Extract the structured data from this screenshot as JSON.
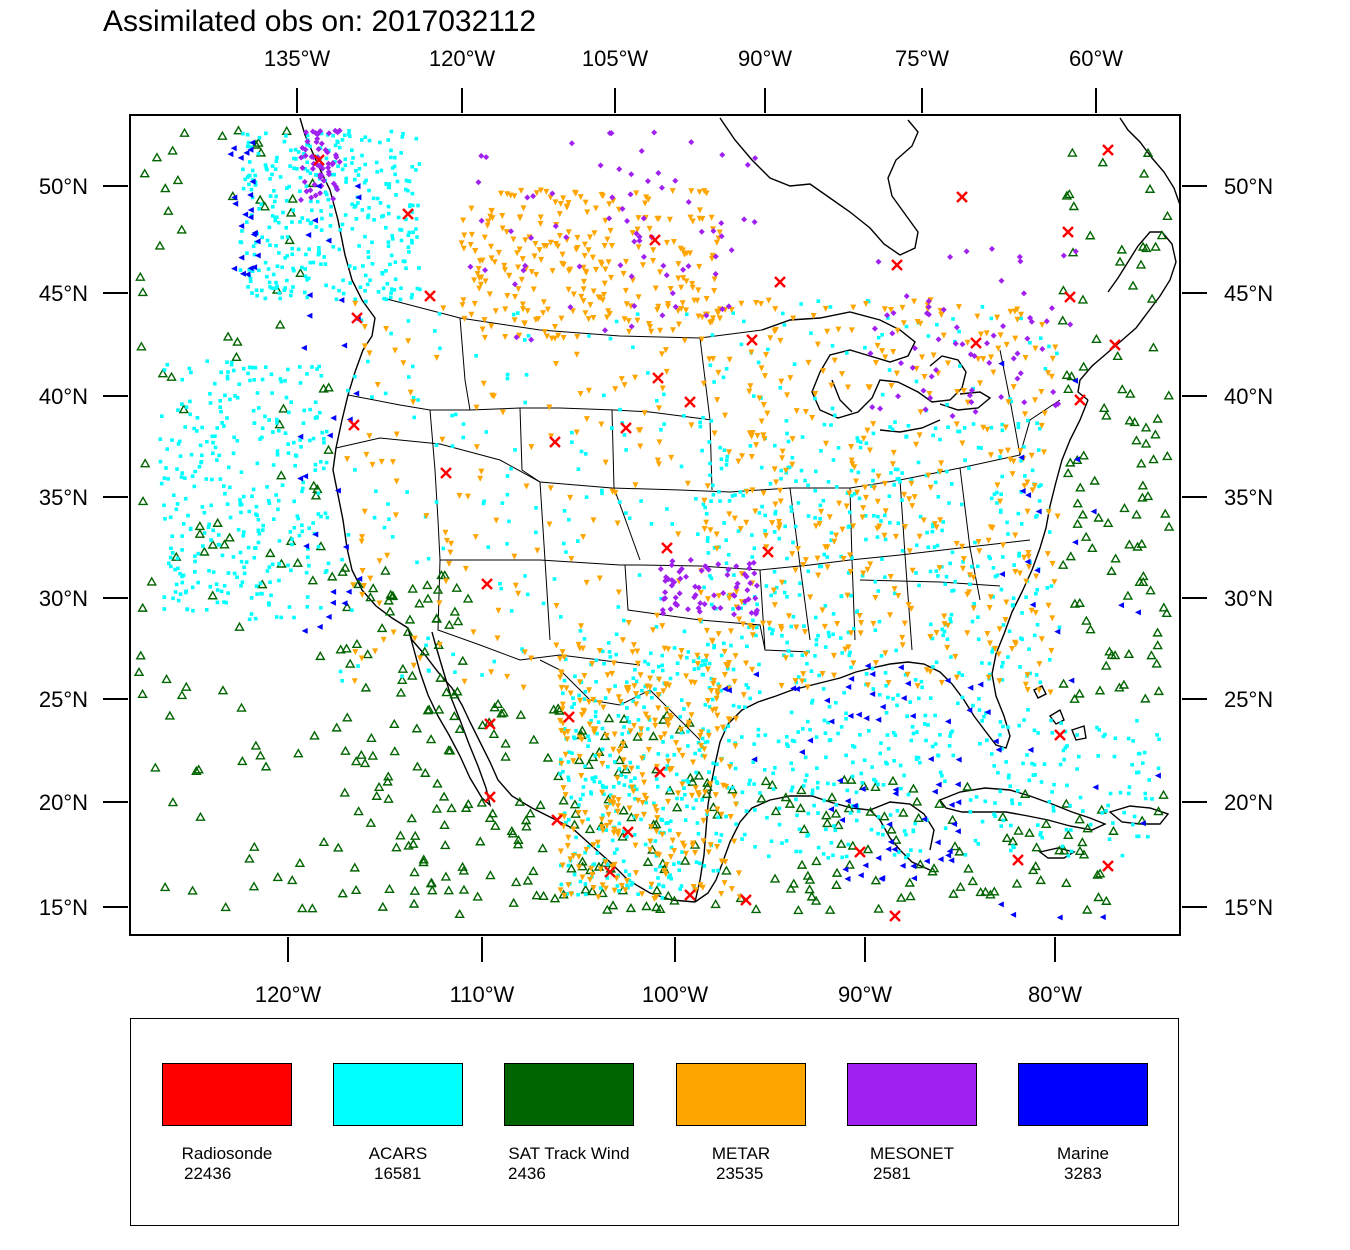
{
  "title": "Assimilated obs on: 2017032112",
  "map": {
    "top_lon_labels": [
      "135°W",
      "120°W",
      "105°W",
      "90°W",
      "75°W",
      "60°W"
    ],
    "bottom_lon_labels": [
      "120°W",
      "110°W",
      "100°W",
      "90°W",
      "80°W"
    ],
    "lat_labels": [
      "50°N",
      "45°N",
      "40°N",
      "35°N",
      "30°N",
      "25°N",
      "20°N",
      "15°N"
    ]
  },
  "legend": {
    "items": [
      {
        "label": "Radiosonde",
        "count": "22436",
        "color": "#ff0000",
        "marker": "x-cross"
      },
      {
        "label": "ACARS",
        "count": "16581",
        "color": "#00ffff",
        "marker": "square-dot"
      },
      {
        "label": "SAT Track Wind",
        "count": "2436",
        "color": "#006400",
        "marker": "open-triangle"
      },
      {
        "label": "METAR",
        "count": "23535",
        "color": "#ffa500",
        "marker": "down-triangle"
      },
      {
        "label": "MESONET",
        "count": "2581",
        "color": "#a020f0",
        "marker": "diamond"
      },
      {
        "label": "Marine",
        "count": "3283",
        "color": "#0000ff",
        "marker": "left-triangle"
      }
    ]
  }
}
